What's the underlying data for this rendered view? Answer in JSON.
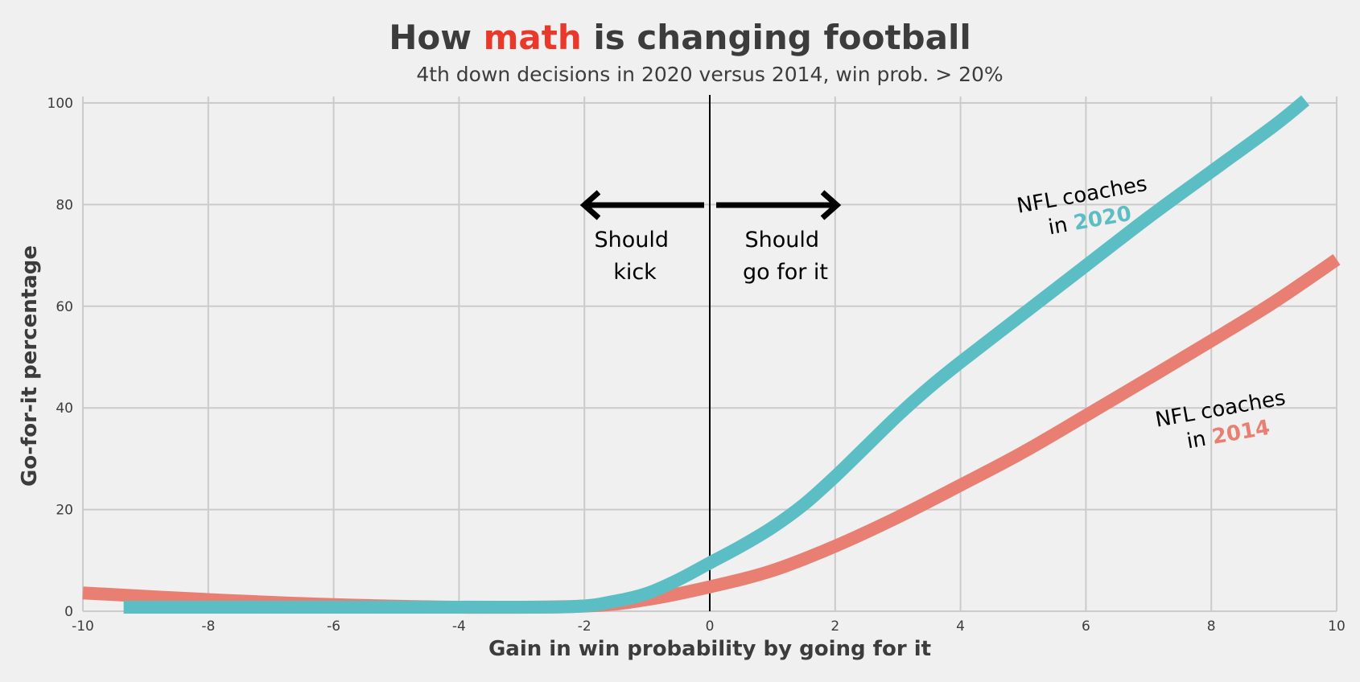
{
  "chart_data": {
    "type": "line",
    "title": {
      "prefix": "How ",
      "highlight": "math",
      "suffix": " is changing football",
      "highlight_color": "#e8392a"
    },
    "subtitle": "4th down decisions in 2020 versus 2014, win prob. > 20%",
    "xlabel": "Gain in win probability by going for it",
    "ylabel": "Go-for-it percentage",
    "xlim": [
      -10,
      10
    ],
    "ylim": [
      0,
      100
    ],
    "xticks": [
      -10,
      -8,
      -6,
      -4,
      -2,
      0,
      2,
      4,
      6,
      8,
      10
    ],
    "yticks": [
      0,
      20,
      40,
      60,
      80,
      100
    ],
    "grid": true,
    "vertical_reference_x": 0,
    "series": [
      {
        "name": "2014",
        "color": "#e87f72",
        "x": [
          -10,
          -8,
          -6,
          -4,
          -2,
          -1,
          0,
          1,
          2,
          3,
          4,
          5,
          6,
          7,
          8,
          9,
          10
        ],
        "y": [
          3.6,
          2.3,
          1.3,
          0.8,
          1.0,
          2.3,
          4.8,
          8.0,
          12.8,
          18.5,
          24.8,
          31.3,
          38.5,
          45.8,
          53.2,
          60.8,
          69.2
        ]
      },
      {
        "name": "2020",
        "color": "#5bbec4",
        "x": [
          -9.35,
          -8,
          -6,
          -4,
          -2.2,
          -1.5,
          -1,
          -0.5,
          0,
          0.5,
          1,
          1.5,
          2,
          2.5,
          3,
          3.5,
          4,
          5,
          6,
          7,
          8,
          9,
          9.5
        ],
        "y": [
          0.8,
          0.8,
          0.8,
          0.8,
          0.9,
          2.0,
          3.5,
          6.2,
          9.5,
          12.8,
          16.5,
          21.0,
          26.5,
          32.5,
          38.5,
          44.0,
          49.0,
          58.5,
          68.0,
          77.5,
          86.5,
          95.5,
          100.5
        ]
      }
    ],
    "annotations": {
      "kick": [
        "Should",
        "kick"
      ],
      "go": [
        "Should",
        "go for it"
      ]
    },
    "series_labels": {
      "l2020": {
        "line1": "NFL coaches",
        "in": "in ",
        "year": "2020",
        "color": "#5bbec4"
      },
      "l2014": {
        "line1": "NFL coaches",
        "in": "in ",
        "year": "2014",
        "color": "#e87f72"
      }
    }
  }
}
